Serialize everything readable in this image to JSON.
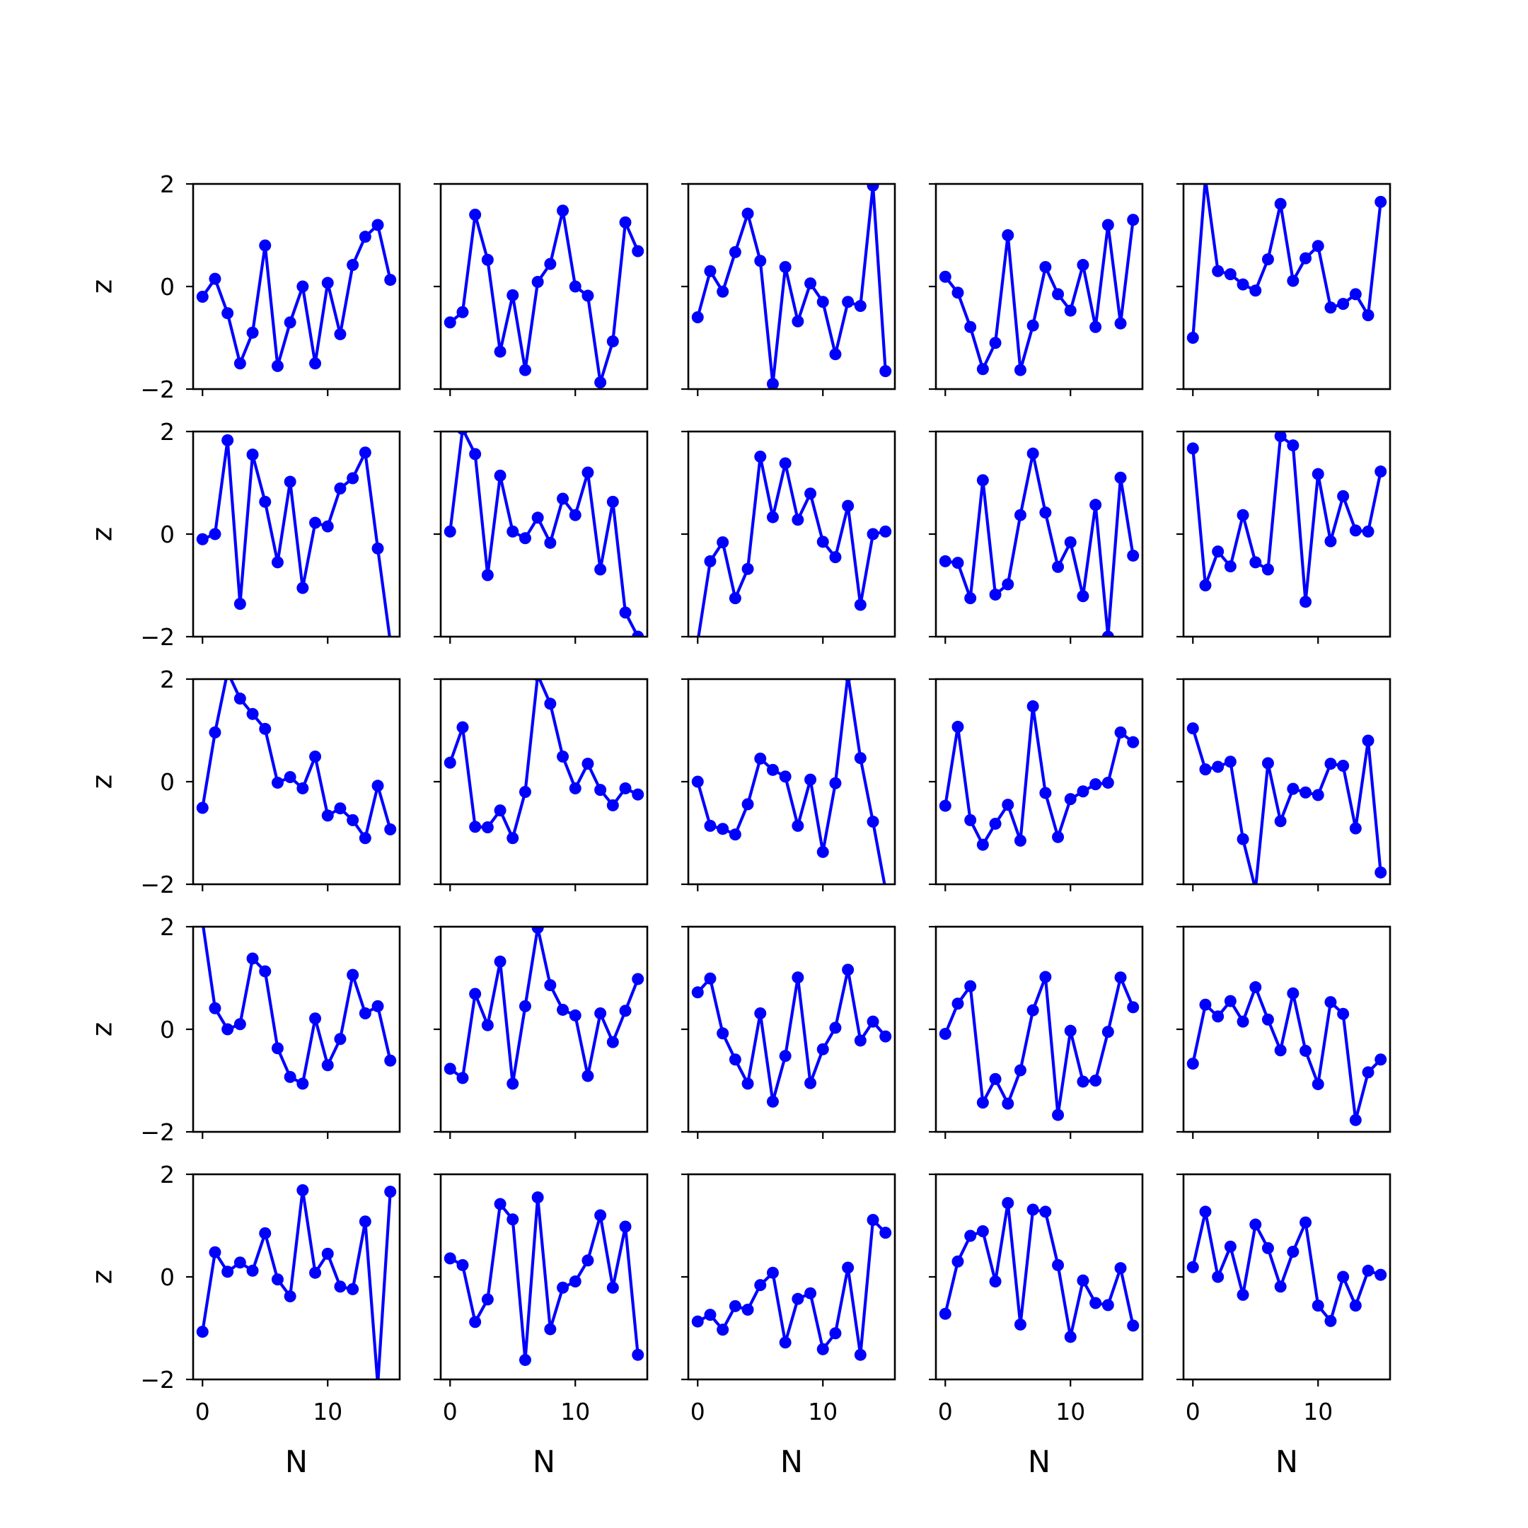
{
  "chart_data": {
    "type": "line",
    "layout": "5x5 grid of subplots, shared axes",
    "grid": false,
    "marker": "circle",
    "line_color": "#0000ff",
    "xlabel": "N",
    "ylabel": "z",
    "xlim": [
      -0.75,
      15.75
    ],
    "ylim": [
      -2,
      2
    ],
    "x_ticks": [
      0,
      10
    ],
    "y_ticks": [
      -2,
      0,
      2
    ],
    "x": [
      0,
      1,
      2,
      3,
      4,
      5,
      6,
      7,
      8,
      9,
      10,
      11,
      12,
      13,
      14,
      15
    ],
    "panels": [
      {
        "row": 1,
        "col": 1,
        "values": [
          -0.2,
          0.15,
          -0.52,
          -1.5,
          -0.9,
          0.8,
          -1.55,
          -0.7,
          0.0,
          -1.5,
          0.07,
          -0.93,
          0.42,
          0.97,
          1.2,
          0.13
        ]
      },
      {
        "row": 1,
        "col": 2,
        "values": [
          -0.7,
          -0.5,
          1.4,
          0.52,
          -1.27,
          -0.17,
          -1.63,
          0.09,
          0.44,
          1.48,
          0.0,
          -0.18,
          -1.87,
          -1.07,
          1.25,
          0.69
        ]
      },
      {
        "row": 1,
        "col": 3,
        "values": [
          -0.6,
          0.3,
          -0.1,
          0.67,
          1.42,
          0.5,
          -1.9,
          0.38,
          -0.68,
          0.06,
          -0.3,
          -1.32,
          -0.3,
          -0.38,
          1.97,
          -1.65
        ]
      },
      {
        "row": 1,
        "col": 4,
        "values": [
          0.19,
          -0.12,
          -0.79,
          -1.61,
          -1.1,
          1.0,
          -1.63,
          -0.76,
          0.38,
          -0.15,
          -0.47,
          0.42,
          -0.79,
          1.2,
          -0.72,
          1.3
        ]
      },
      {
        "row": 1,
        "col": 5,
        "values": [
          -1.0,
          2.1,
          0.3,
          0.24,
          0.04,
          -0.08,
          0.53,
          1.61,
          0.11,
          0.55,
          0.79,
          -0.41,
          -0.34,
          -0.15,
          -0.56,
          1.65
        ]
      },
      {
        "row": 2,
        "col": 1,
        "values": [
          -0.1,
          0.0,
          1.83,
          -1.36,
          1.55,
          0.63,
          -0.55,
          1.02,
          -1.05,
          0.22,
          0.15,
          0.89,
          1.09,
          1.59,
          -0.28,
          -2.1
        ]
      },
      {
        "row": 2,
        "col": 2,
        "values": [
          0.05,
          2.05,
          1.56,
          -0.8,
          1.14,
          0.05,
          -0.08,
          0.32,
          -0.17,
          0.69,
          0.37,
          1.2,
          -0.69,
          0.63,
          -1.53,
          -2.0
        ]
      },
      {
        "row": 2,
        "col": 3,
        "values": [
          -2.1,
          -0.53,
          -0.16,
          -1.25,
          -0.68,
          1.51,
          0.33,
          1.38,
          0.28,
          0.79,
          -0.15,
          -0.45,
          0.55,
          -1.38,
          0.0,
          0.05
        ]
      },
      {
        "row": 2,
        "col": 4,
        "values": [
          -0.53,
          -0.56,
          -1.25,
          1.05,
          -1.18,
          -0.98,
          0.37,
          1.57,
          0.42,
          -0.64,
          -0.16,
          -1.21,
          0.57,
          -2.0,
          1.1,
          -0.42
        ]
      },
      {
        "row": 2,
        "col": 5,
        "values": [
          1.67,
          -1.0,
          -0.34,
          -0.63,
          0.37,
          -0.55,
          -0.69,
          1.91,
          1.73,
          -1.32,
          1.17,
          -0.14,
          0.74,
          0.07,
          0.05,
          1.22
        ]
      },
      {
        "row": 3,
        "col": 1,
        "values": [
          -0.51,
          0.96,
          2.14,
          1.62,
          1.32,
          1.03,
          -0.02,
          0.09,
          -0.13,
          0.49,
          -0.66,
          -0.52,
          -0.75,
          -1.1,
          -0.08,
          -0.93
        ]
      },
      {
        "row": 3,
        "col": 2,
        "values": [
          0.37,
          1.06,
          -0.88,
          -0.89,
          -0.56,
          -1.1,
          -0.2,
          2.08,
          1.52,
          0.49,
          -0.13,
          0.35,
          -0.16,
          -0.46,
          -0.13,
          -0.25
        ]
      },
      {
        "row": 3,
        "col": 3,
        "values": [
          0.0,
          -0.86,
          -0.92,
          -1.03,
          -0.44,
          0.45,
          0.23,
          0.1,
          -0.86,
          0.04,
          -1.37,
          -0.03,
          2.08,
          0.46,
          -0.78,
          -2.1
        ]
      },
      {
        "row": 3,
        "col": 4,
        "values": [
          -0.47,
          1.07,
          -0.75,
          -1.23,
          -0.82,
          -0.45,
          -1.15,
          1.47,
          -0.22,
          -1.08,
          -0.34,
          -0.19,
          -0.05,
          -0.02,
          0.96,
          0.77
        ]
      },
      {
        "row": 3,
        "col": 5,
        "values": [
          1.04,
          0.24,
          0.29,
          0.39,
          -1.12,
          -2.1,
          0.36,
          -0.77,
          -0.14,
          -0.21,
          -0.26,
          0.35,
          0.31,
          -0.91,
          0.8,
          -1.77
        ]
      },
      {
        "row": 4,
        "col": 1,
        "values": [
          2.1,
          0.41,
          0.0,
          0.1,
          1.38,
          1.13,
          -0.37,
          -0.93,
          -1.06,
          0.21,
          -0.7,
          -0.19,
          1.06,
          0.31,
          0.45,
          -0.61
        ]
      },
      {
        "row": 4,
        "col": 2,
        "values": [
          -0.77,
          -0.95,
          0.69,
          0.08,
          1.32,
          -1.06,
          0.45,
          1.98,
          0.86,
          0.38,
          0.27,
          -0.91,
          0.31,
          -0.25,
          0.36,
          0.98
        ]
      },
      {
        "row": 4,
        "col": 3,
        "values": [
          0.72,
          0.99,
          -0.08,
          -0.59,
          -1.06,
          0.31,
          -1.41,
          -0.52,
          1.01,
          -1.05,
          -0.39,
          0.03,
          1.16,
          -0.22,
          0.15,
          -0.14
        ]
      },
      {
        "row": 4,
        "col": 4,
        "values": [
          -0.09,
          0.5,
          0.84,
          -1.43,
          -0.97,
          -1.45,
          -0.8,
          0.37,
          1.02,
          -1.67,
          -0.03,
          -1.02,
          -1.0,
          -0.05,
          1.01,
          0.43
        ]
      },
      {
        "row": 4,
        "col": 5,
        "values": [
          -0.67,
          0.48,
          0.25,
          0.55,
          0.15,
          0.82,
          0.19,
          -0.41,
          0.7,
          -0.42,
          -1.07,
          0.53,
          0.3,
          -1.77,
          -0.84,
          -0.59
        ]
      },
      {
        "row": 5,
        "col": 1,
        "values": [
          -1.07,
          0.48,
          0.1,
          0.28,
          0.12,
          0.85,
          -0.05,
          -0.38,
          1.69,
          0.08,
          0.45,
          -0.19,
          -0.24,
          1.08,
          -2.1,
          1.66
        ]
      },
      {
        "row": 5,
        "col": 2,
        "values": [
          0.36,
          0.23,
          -0.88,
          -0.44,
          1.42,
          1.12,
          -1.62,
          1.55,
          -1.02,
          -0.21,
          -0.09,
          0.32,
          1.2,
          -0.21,
          0.98,
          -1.52
        ]
      },
      {
        "row": 5,
        "col": 3,
        "values": [
          -0.87,
          -0.74,
          -1.03,
          -0.57,
          -0.64,
          -0.16,
          0.08,
          -1.28,
          -0.43,
          -0.32,
          -1.41,
          -1.1,
          0.18,
          -1.52,
          1.11,
          0.86
        ]
      },
      {
        "row": 5,
        "col": 4,
        "values": [
          -0.72,
          0.3,
          0.8,
          0.89,
          -0.09,
          1.44,
          -0.93,
          1.31,
          1.27,
          0.23,
          -1.17,
          -0.07,
          -0.51,
          -0.55,
          0.17,
          -0.95
        ]
      },
      {
        "row": 5,
        "col": 5,
        "values": [
          0.19,
          1.27,
          0.0,
          0.59,
          -0.35,
          1.02,
          0.56,
          -0.19,
          0.49,
          1.06,
          -0.56,
          -0.86,
          0.0,
          -0.56,
          0.12,
          0.04
        ]
      }
    ]
  }
}
